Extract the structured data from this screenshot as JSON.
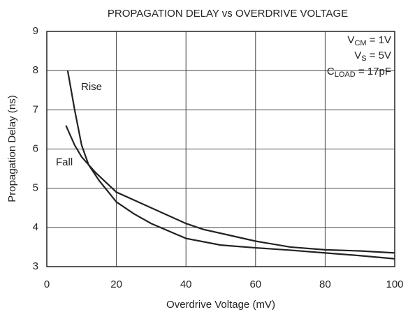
{
  "chart_data": {
    "type": "line",
    "title": "PROPAGATION DELAY vs OVERDRIVE VOLTAGE",
    "x_label": "Overdrive Voltage (mV)",
    "y_label": "Propagation Delay (ns)",
    "annotations": [
      {
        "main": "V",
        "sub": "CM",
        "rest": " = 1V"
      },
      {
        "main": "V",
        "sub": "S",
        "rest": " = 5V"
      },
      {
        "main": "C",
        "sub": "LOAD",
        "rest": " = 17pF"
      }
    ],
    "series": [
      {
        "name": "Rise",
        "color": "#222222",
        "x": [
          6,
          8,
          10,
          12,
          15,
          20,
          25,
          30,
          40,
          50,
          60,
          70,
          80,
          90,
          100
        ],
        "values": [
          8,
          7,
          6.1,
          5.6,
          5.2,
          4.65,
          4.35,
          4.1,
          3.72,
          3.55,
          3.48,
          3.42,
          3.35,
          3.28,
          3.2
        ]
      },
      {
        "name": "Fall",
        "color": "#222222",
        "x": [
          5.5,
          8,
          10,
          14,
          20,
          25,
          30,
          40,
          45,
          50,
          60,
          70,
          80,
          90,
          100
        ],
        "values": [
          6.6,
          6.1,
          5.8,
          5.4,
          4.9,
          4.7,
          4.5,
          4.1,
          3.95,
          3.85,
          3.65,
          3.5,
          3.43,
          3.4,
          3.35
        ]
      }
    ],
    "xlim": [
      0,
      100
    ],
    "xticks": [
      0,
      20,
      40,
      60,
      80,
      100
    ],
    "ylim": [
      3,
      9
    ],
    "yticks": [
      3,
      4,
      5,
      6,
      7,
      8,
      9
    ],
    "grid": true
  }
}
